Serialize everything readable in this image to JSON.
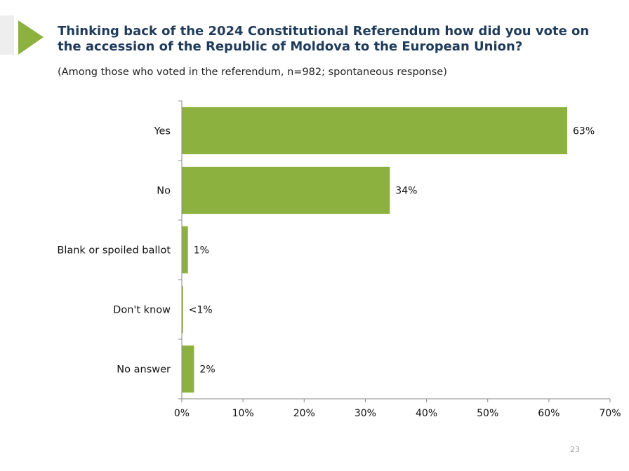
{
  "slide": {
    "title": "Thinking back of the 2024 Constitutional Referendum how did you vote on the accession of the Republic of Moldova to the European Union?",
    "subtitle": "(Among those who voted in the referendum, n=982; spontaneous response)",
    "page_number": "23",
    "accent_color": "#8db13f",
    "title_color": "#1f3b5c"
  },
  "chart_data": {
    "type": "bar",
    "orientation": "horizontal",
    "categories": [
      "Yes",
      "No",
      "Blank or spoiled ballot",
      "Don't know",
      "No answer"
    ],
    "values": [
      63,
      34,
      1,
      0.2,
      2
    ],
    "data_labels": [
      "63%",
      "34%",
      "1%",
      "<1%",
      "2%"
    ],
    "xlim": [
      0,
      70
    ],
    "x_ticks": [
      "0%",
      "10%",
      "20%",
      "30%",
      "40%",
      "50%",
      "60%",
      "70%"
    ],
    "bar_color": "#8db13f",
    "grid": false
  }
}
